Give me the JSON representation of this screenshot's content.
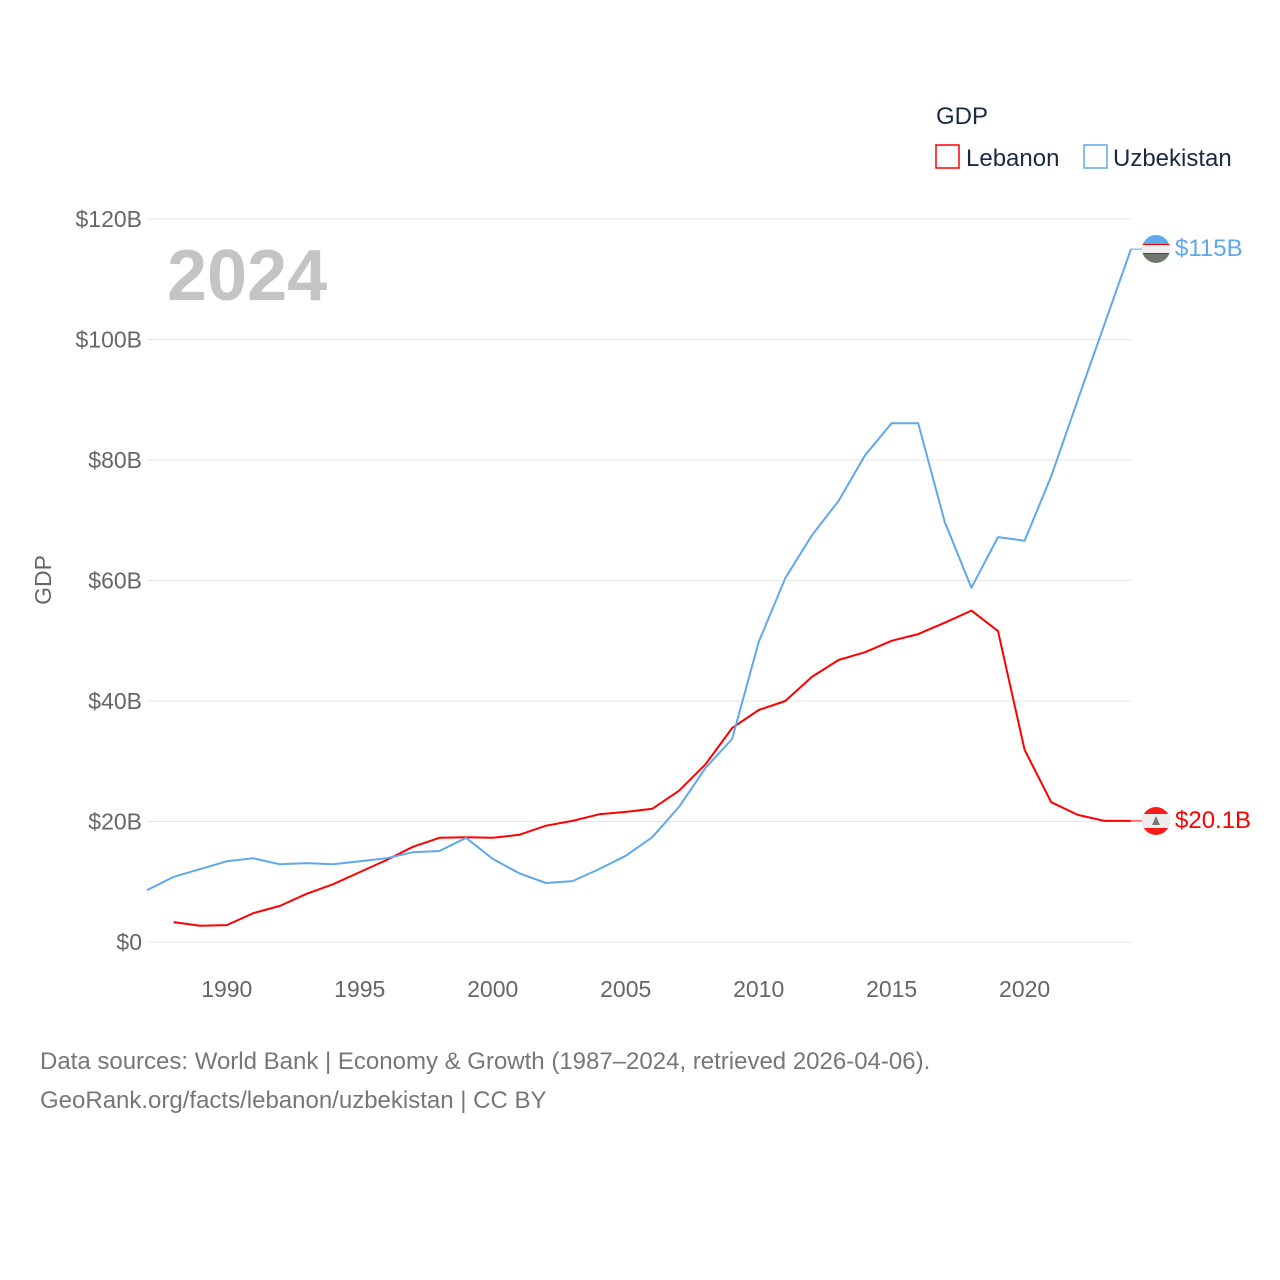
{
  "chart_data": {
    "type": "line",
    "ylabel": "GDP",
    "xlabel": "",
    "ylim": [
      0,
      120
    ],
    "xlim": [
      1987,
      2024
    ],
    "y_ticks": [
      "$0",
      "$20B",
      "$40B",
      "$60B",
      "$80B",
      "$100B",
      "$120B"
    ],
    "y_tick_values": [
      0,
      20,
      40,
      60,
      80,
      100,
      120
    ],
    "x_ticks": [
      "1990",
      "1995",
      "2000",
      "2005",
      "2010",
      "2015",
      "2020"
    ],
    "x_tick_values": [
      1990,
      1995,
      2000,
      2005,
      2010,
      2015,
      2020
    ],
    "grid": true,
    "legend": {
      "title": "GDP",
      "placement": "top-right",
      "entries": [
        "Lebanon",
        "Uzbekistan"
      ]
    },
    "year_label": "2024",
    "series": [
      {
        "name": "Lebanon",
        "color": "#ff0000",
        "end_label": "$20.1B",
        "x": [
          1988,
          1989,
          1990,
          1991,
          1992,
          1993,
          1994,
          1995,
          1996,
          1997,
          1998,
          1999,
          2000,
          2001,
          2002,
          2003,
          2004,
          2005,
          2006,
          2007,
          2008,
          2009,
          2010,
          2011,
          2012,
          2013,
          2014,
          2015,
          2016,
          2017,
          2018,
          2019,
          2020,
          2021,
          2022,
          2023,
          2024
        ],
        "values": [
          3.3,
          2.7,
          2.8,
          4.8,
          6.0,
          8.0,
          9.6,
          11.6,
          13.6,
          15.8,
          17.3,
          17.4,
          17.3,
          17.8,
          19.3,
          20.1,
          21.2,
          21.6,
          22.1,
          25.1,
          29.5,
          35.5,
          38.5,
          40.0,
          44.0,
          46.8,
          48.1,
          50.0,
          51.1,
          53.0,
          55.0,
          51.6,
          31.9,
          23.2,
          21.1,
          20.1,
          20.1
        ]
      },
      {
        "name": "Uzbekistan",
        "color": "#5fa8ec",
        "end_label": "$115B",
        "x": [
          1987,
          1988,
          1989,
          1990,
          1991,
          1992,
          1993,
          1994,
          1995,
          1996,
          1997,
          1998,
          1999,
          2000,
          2001,
          2002,
          2003,
          2004,
          2005,
          2006,
          2007,
          2008,
          2009,
          2010,
          2011,
          2012,
          2013,
          2014,
          2015,
          2016,
          2017,
          2018,
          2019,
          2020,
          2021,
          2022,
          2023,
          2024
        ],
        "values": [
          8.6,
          10.8,
          12.1,
          13.4,
          13.9,
          12.9,
          13.1,
          12.9,
          13.4,
          13.9,
          14.9,
          15.1,
          17.3,
          13.8,
          11.4,
          9.8,
          10.1,
          12.1,
          14.3,
          17.4,
          22.4,
          28.9,
          33.7,
          49.8,
          60.4,
          67.5,
          73.2,
          80.8,
          86.1,
          86.1,
          69.7,
          58.8,
          67.2,
          66.6,
          77.3,
          90.0,
          102.5,
          115.0
        ]
      }
    ]
  },
  "footer": {
    "line1": "Data sources: World Bank | Economy & Growth (1987–2024, retrieved 2026-04-06).",
    "line2": "GeoRank.org/facts/lebanon/uzbekistan | CC BY"
  }
}
